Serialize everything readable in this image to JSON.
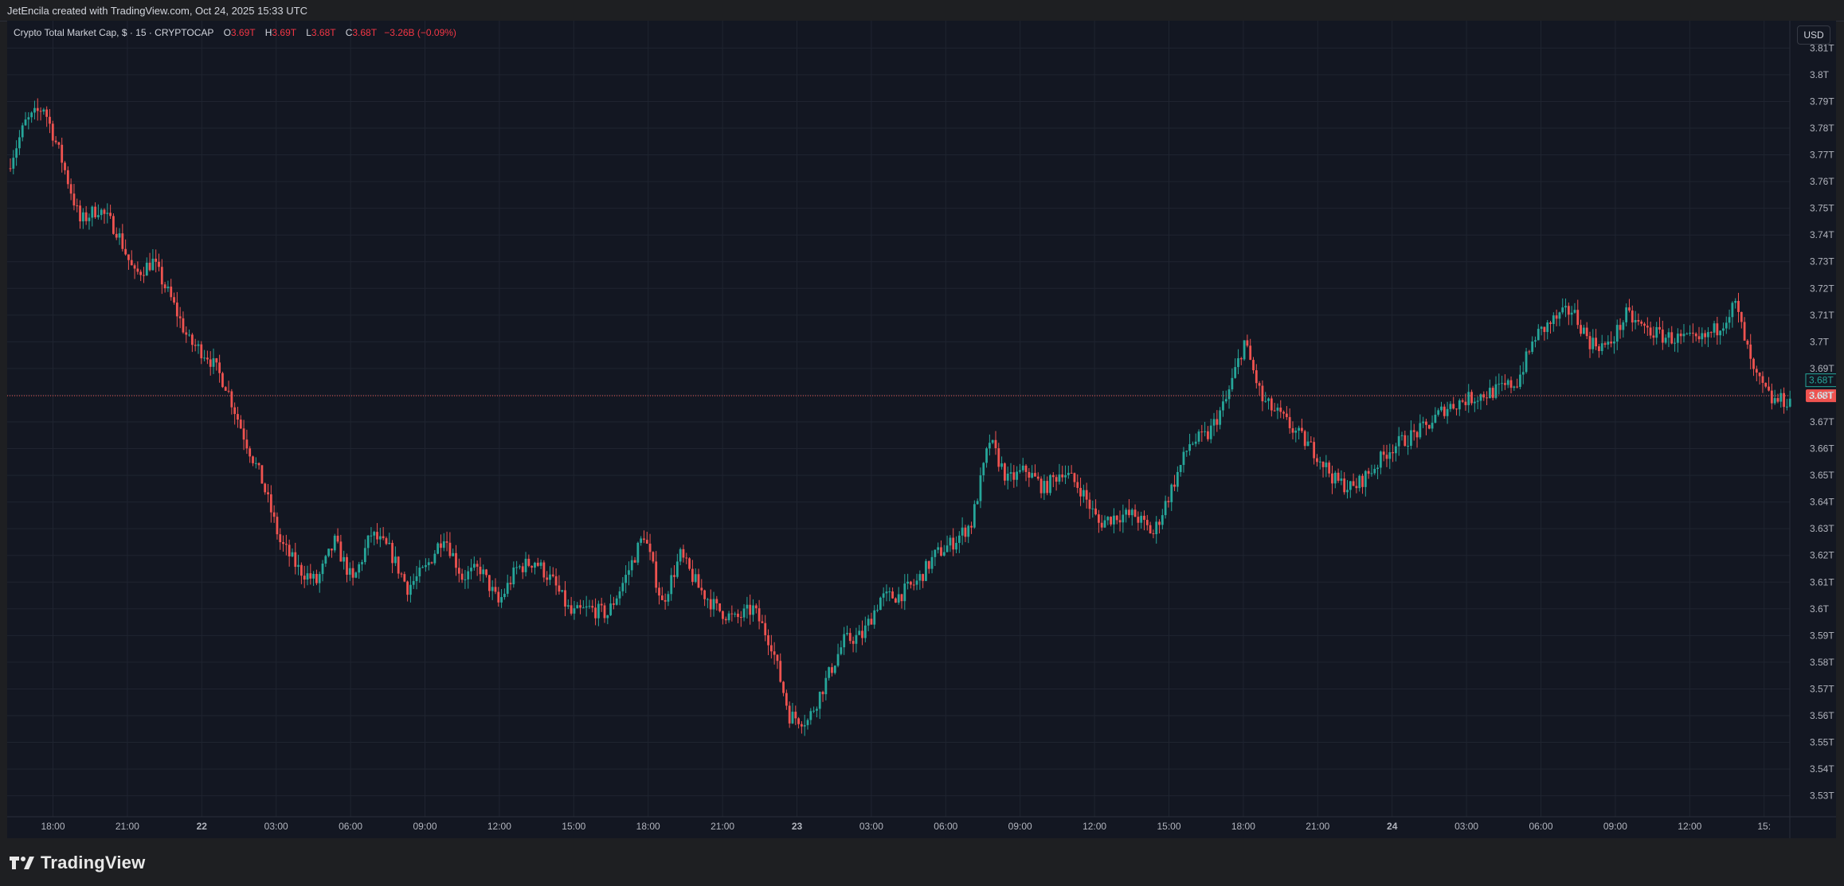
{
  "header": {
    "credit": "JetEncila created with TradingView.com, Oct 24, 2025 15:33 UTC"
  },
  "legend": {
    "symbol": "Crypto Total Market Cap, $ · 15 · CRYPTOCAP",
    "open_key": "O",
    "open": "3.69T",
    "high_key": "H",
    "high": "3.69T",
    "low_key": "L",
    "low": "3.68T",
    "close_key": "C",
    "close": "3.68T",
    "change": "−3.26B (−0.09%)"
  },
  "currency_button": "USD",
  "brand": {
    "name": "TradingView",
    "logo_icon": "tradingview-logo-icon"
  },
  "colors": {
    "up": "#26a69a",
    "down": "#ef5350",
    "background": "#131722",
    "grid": "#1f2430"
  },
  "chart_data": {
    "type": "candlestick",
    "title": "Crypto Total Market Cap, $ · 15 · CRYPTOCAP",
    "unit": "T",
    "ylim": [
      3.525,
      3.815
    ],
    "y_ticks": [
      "3.53T",
      "3.54T",
      "3.55T",
      "3.56T",
      "3.57T",
      "3.58T",
      "3.59T",
      "3.6T",
      "3.61T",
      "3.62T",
      "3.63T",
      "3.64T",
      "3.65T",
      "3.66T",
      "3.67T",
      "3.68T",
      "3.69T",
      "3.7T",
      "3.71T",
      "3.72T",
      "3.73T",
      "3.74T",
      "3.75T",
      "3.76T",
      "3.77T",
      "3.78T",
      "3.79T",
      "3.8T",
      "3.81T"
    ],
    "x_ticks": [
      "18:00",
      "21:00",
      "22",
      "03:00",
      "06:00",
      "09:00",
      "12:00",
      "15:00",
      "18:00",
      "21:00",
      "23",
      "03:00",
      "06:00",
      "09:00",
      "12:00",
      "15:00",
      "18:00",
      "21:00",
      "24",
      "03:00",
      "06:00",
      "09:00",
      "12:00",
      "15:"
    ],
    "current_price_labels": [
      "3.68T",
      "3.68T"
    ],
    "grid": true,
    "series": [
      {
        "t": 0,
        "y": 3.765
      },
      {
        "t": 6,
        "y": 3.782
      },
      {
        "t": 12,
        "y": 3.788
      },
      {
        "t": 18,
        "y": 3.768
      },
      {
        "t": 24,
        "y": 3.745
      },
      {
        "t": 30,
        "y": 3.75
      },
      {
        "t": 36,
        "y": 3.742
      },
      {
        "t": 42,
        "y": 3.725
      },
      {
        "t": 48,
        "y": 3.73
      },
      {
        "t": 54,
        "y": 3.716
      },
      {
        "t": 60,
        "y": 3.7
      },
      {
        "t": 66,
        "y": 3.695
      },
      {
        "t": 72,
        "y": 3.684
      },
      {
        "t": 78,
        "y": 3.665
      },
      {
        "t": 84,
        "y": 3.648
      },
      {
        "t": 90,
        "y": 3.625
      },
      {
        "t": 96,
        "y": 3.615
      },
      {
        "t": 102,
        "y": 3.61
      },
      {
        "t": 108,
        "y": 3.625
      },
      {
        "t": 114,
        "y": 3.61
      },
      {
        "t": 120,
        "y": 3.628
      },
      {
        "t": 126,
        "y": 3.622
      },
      {
        "t": 132,
        "y": 3.608
      },
      {
        "t": 138,
        "y": 3.615
      },
      {
        "t": 144,
        "y": 3.628
      },
      {
        "t": 150,
        "y": 3.612
      },
      {
        "t": 156,
        "y": 3.615
      },
      {
        "t": 162,
        "y": 3.602
      },
      {
        "t": 168,
        "y": 3.615
      },
      {
        "t": 174,
        "y": 3.618
      },
      {
        "t": 180,
        "y": 3.61
      },
      {
        "t": 186,
        "y": 3.598
      },
      {
        "t": 192,
        "y": 3.6
      },
      {
        "t": 198,
        "y": 3.598
      },
      {
        "t": 204,
        "y": 3.612
      },
      {
        "t": 210,
        "y": 3.628
      },
      {
        "t": 216,
        "y": 3.602
      },
      {
        "t": 222,
        "y": 3.62
      },
      {
        "t": 228,
        "y": 3.608
      },
      {
        "t": 234,
        "y": 3.6
      },
      {
        "t": 240,
        "y": 3.596
      },
      {
        "t": 246,
        "y": 3.6
      },
      {
        "t": 252,
        "y": 3.587
      },
      {
        "t": 258,
        "y": 3.56
      },
      {
        "t": 264,
        "y": 3.558
      },
      {
        "t": 270,
        "y": 3.573
      },
      {
        "t": 276,
        "y": 3.588
      },
      {
        "t": 282,
        "y": 3.59
      },
      {
        "t": 288,
        "y": 3.604
      },
      {
        "t": 294,
        "y": 3.605
      },
      {
        "t": 300,
        "y": 3.61
      },
      {
        "t": 306,
        "y": 3.62
      },
      {
        "t": 312,
        "y": 3.625
      },
      {
        "t": 318,
        "y": 3.632
      },
      {
        "t": 324,
        "y": 3.663
      },
      {
        "t": 330,
        "y": 3.648
      },
      {
        "t": 336,
        "y": 3.652
      },
      {
        "t": 342,
        "y": 3.645
      },
      {
        "t": 348,
        "y": 3.652
      },
      {
        "t": 354,
        "y": 3.645
      },
      {
        "t": 360,
        "y": 3.632
      },
      {
        "t": 366,
        "y": 3.635
      },
      {
        "t": 372,
        "y": 3.635
      },
      {
        "t": 378,
        "y": 3.628
      },
      {
        "t": 384,
        "y": 3.645
      },
      {
        "t": 390,
        "y": 3.662
      },
      {
        "t": 396,
        "y": 3.665
      },
      {
        "t": 402,
        "y": 3.678
      },
      {
        "t": 408,
        "y": 3.7
      },
      {
        "t": 414,
        "y": 3.678
      },
      {
        "t": 420,
        "y": 3.672
      },
      {
        "t": 426,
        "y": 3.665
      },
      {
        "t": 432,
        "y": 3.658
      },
      {
        "t": 438,
        "y": 3.648
      },
      {
        "t": 444,
        "y": 3.645
      },
      {
        "t": 450,
        "y": 3.652
      },
      {
        "t": 456,
        "y": 3.66
      },
      {
        "t": 462,
        "y": 3.664
      },
      {
        "t": 468,
        "y": 3.668
      },
      {
        "t": 474,
        "y": 3.675
      },
      {
        "t": 480,
        "y": 3.678
      },
      {
        "t": 486,
        "y": 3.68
      },
      {
        "t": 492,
        "y": 3.682
      },
      {
        "t": 498,
        "y": 3.685
      },
      {
        "t": 504,
        "y": 3.702
      },
      {
        "t": 510,
        "y": 3.708
      },
      {
        "t": 516,
        "y": 3.712
      },
      {
        "t": 522,
        "y": 3.7
      },
      {
        "t": 528,
        "y": 3.698
      },
      {
        "t": 534,
        "y": 3.71
      },
      {
        "t": 540,
        "y": 3.705
      },
      {
        "t": 546,
        "y": 3.702
      },
      {
        "t": 552,
        "y": 3.701
      },
      {
        "t": 558,
        "y": 3.7
      },
      {
        "t": 564,
        "y": 3.705
      },
      {
        "t": 570,
        "y": 3.714
      },
      {
        "t": 576,
        "y": 3.688
      },
      {
        "t": 582,
        "y": 3.678
      }
    ]
  }
}
